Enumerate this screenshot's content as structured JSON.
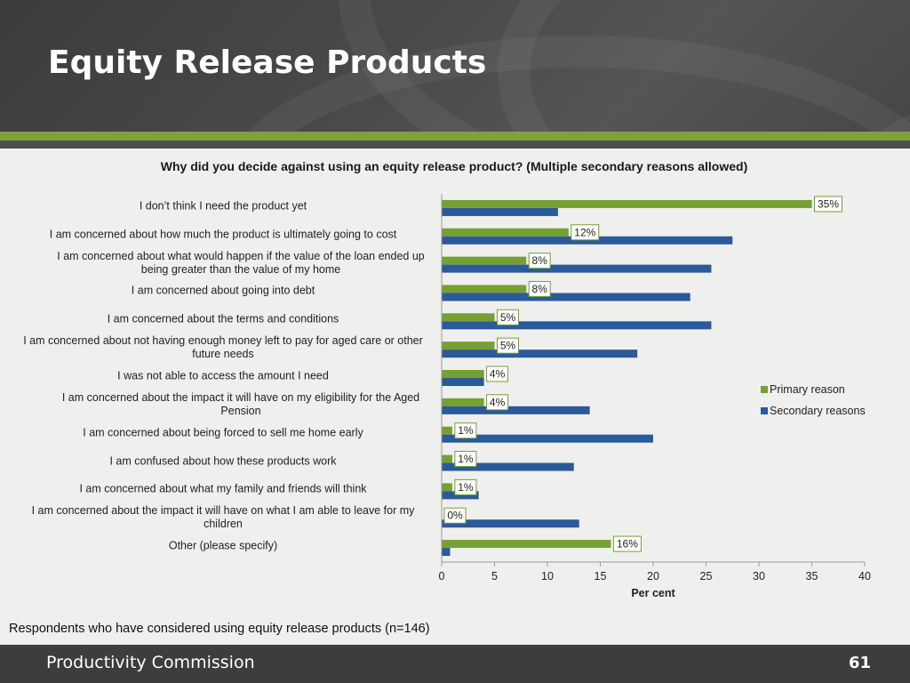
{
  "header": {
    "title": "Equity Release Products"
  },
  "chart_data": {
    "type": "bar",
    "orientation": "horizontal",
    "title": "Why did you decide against using an equity release product? (Multiple secondary reasons allowed)",
    "xlabel": "Per cent",
    "xlim": [
      0,
      40
    ],
    "xticks": [
      "0",
      "5",
      "10",
      "15",
      "20",
      "25",
      "30",
      "35",
      "40"
    ],
    "categories": [
      "I don’t think I need the product yet",
      "I am concerned about how much the product is ultimately going to cost",
      "I am concerned about what would happen if the value of the loan ended up being greater than the value of my home",
      "I am concerned about going into debt",
      "I am concerned about the terms and conditions",
      "I am concerned about not having enough money left to pay for aged care or other future needs",
      "I was not able to access the amount I need",
      "I am concerned about the impact it will have on my eligibility for the Aged Pension",
      "I am concerned about being forced to sell me home early",
      "I am confused about how these products work",
      "I am concerned about what my family and friends will think",
      "I am concerned about the impact it will have on what I am able to leave for my children",
      "Other (please specify)"
    ],
    "series": [
      {
        "name": "Primary reason",
        "color": "#76a034",
        "values": [
          35,
          12,
          8,
          8,
          5,
          5,
          4,
          4,
          1,
          1,
          1,
          0,
          16
        ],
        "data_labels": [
          "35%",
          "12%",
          "8%",
          "8%",
          "5%",
          "5%",
          "4%",
          "4%",
          "1%",
          "1%",
          "1%",
          "0%",
          "16%"
        ]
      },
      {
        "name": "Secondary reasons",
        "color": "#2b5a9a",
        "values": [
          11,
          27.5,
          25.5,
          23.5,
          25.5,
          18.5,
          4,
          14,
          20,
          12.5,
          3.5,
          13,
          0.8
        ]
      }
    ],
    "legend_position": "right",
    "grid": false
  },
  "footnote": "Respondents who have considered using equity release products (n=146)",
  "footer": {
    "org": "Productivity Commission",
    "page": "61"
  }
}
